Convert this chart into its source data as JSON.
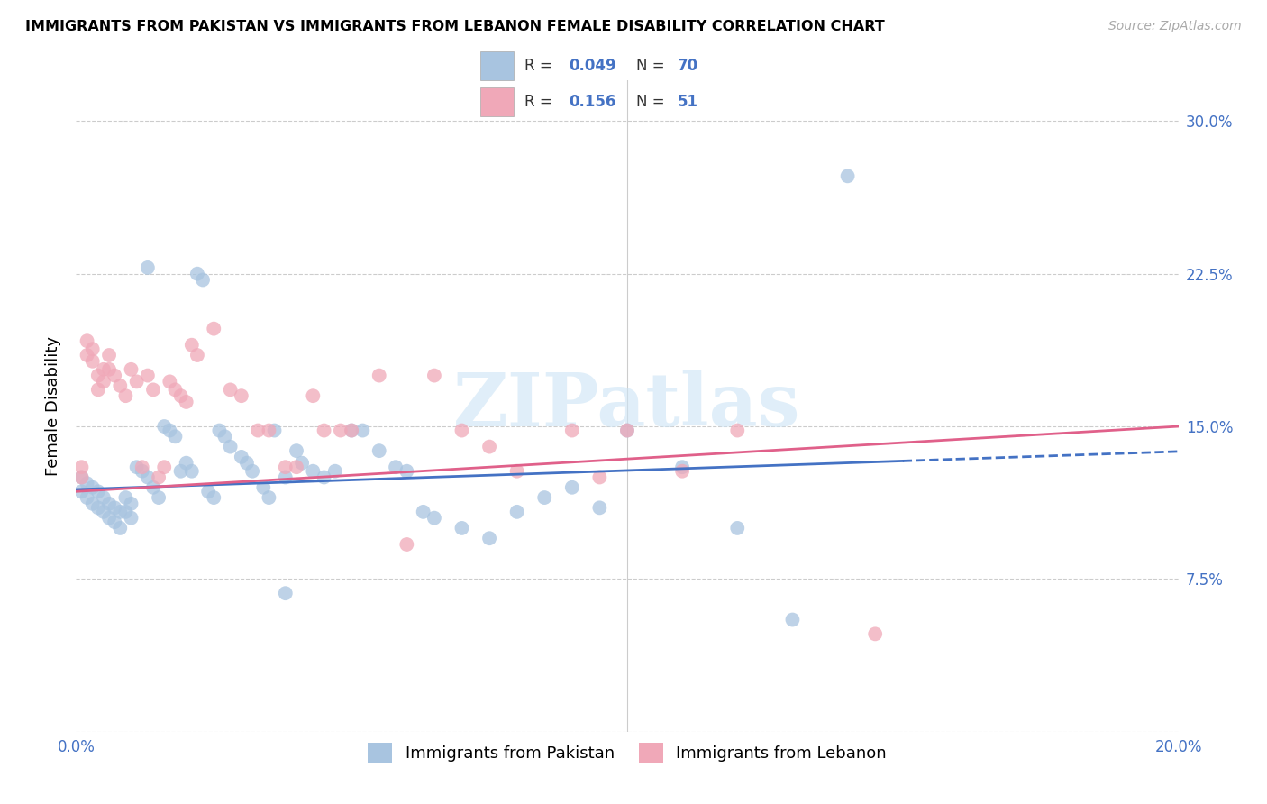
{
  "title": "IMMIGRANTS FROM PAKISTAN VS IMMIGRANTS FROM LEBANON FEMALE DISABILITY CORRELATION CHART",
  "source": "Source: ZipAtlas.com",
  "ylabel": "Female Disability",
  "xlim": [
    0.0,
    0.2
  ],
  "ylim": [
    0.0,
    0.32
  ],
  "yticks": [
    0.0,
    0.075,
    0.15,
    0.225,
    0.3
  ],
  "yticklabels": [
    "",
    "7.5%",
    "15.0%",
    "22.5%",
    "30.0%"
  ],
  "xticks": [
    0.0,
    0.04,
    0.08,
    0.12,
    0.16,
    0.2
  ],
  "xticklabels": [
    "0.0%",
    "",
    "",
    "",
    "",
    "20.0%"
  ],
  "R_pakistan": 0.049,
  "N_pakistan": 70,
  "R_lebanon": 0.156,
  "N_lebanon": 51,
  "color_pakistan": "#a8c4e0",
  "color_lebanon": "#f0a8b8",
  "line_color_pakistan": "#4472c4",
  "line_color_lebanon": "#e0608a",
  "watermark": "ZIPatlas",
  "pak_x": [
    0.001,
    0.001,
    0.002,
    0.002,
    0.003,
    0.003,
    0.004,
    0.004,
    0.005,
    0.005,
    0.006,
    0.006,
    0.007,
    0.007,
    0.008,
    0.008,
    0.009,
    0.009,
    0.01,
    0.01,
    0.011,
    0.012,
    0.013,
    0.013,
    0.014,
    0.015,
    0.016,
    0.017,
    0.018,
    0.019,
    0.02,
    0.021,
    0.022,
    0.023,
    0.024,
    0.025,
    0.026,
    0.027,
    0.028,
    0.03,
    0.031,
    0.032,
    0.034,
    0.035,
    0.036,
    0.038,
    0.04,
    0.041,
    0.043,
    0.045,
    0.047,
    0.05,
    0.052,
    0.055,
    0.058,
    0.06,
    0.063,
    0.065,
    0.07,
    0.075,
    0.08,
    0.085,
    0.09,
    0.095,
    0.1,
    0.11,
    0.12,
    0.13,
    0.14,
    0.038
  ],
  "pak_y": [
    0.125,
    0.118,
    0.122,
    0.115,
    0.12,
    0.112,
    0.118,
    0.11,
    0.115,
    0.108,
    0.112,
    0.105,
    0.11,
    0.103,
    0.108,
    0.1,
    0.115,
    0.108,
    0.112,
    0.105,
    0.13,
    0.128,
    0.125,
    0.228,
    0.12,
    0.115,
    0.15,
    0.148,
    0.145,
    0.128,
    0.132,
    0.128,
    0.225,
    0.222,
    0.118,
    0.115,
    0.148,
    0.145,
    0.14,
    0.135,
    0.132,
    0.128,
    0.12,
    0.115,
    0.148,
    0.125,
    0.138,
    0.132,
    0.128,
    0.125,
    0.128,
    0.148,
    0.148,
    0.138,
    0.13,
    0.128,
    0.108,
    0.105,
    0.1,
    0.095,
    0.108,
    0.115,
    0.12,
    0.11,
    0.148,
    0.13,
    0.1,
    0.055,
    0.273,
    0.068
  ],
  "leb_x": [
    0.001,
    0.001,
    0.002,
    0.002,
    0.003,
    0.003,
    0.004,
    0.004,
    0.005,
    0.005,
    0.006,
    0.006,
    0.007,
    0.008,
    0.009,
    0.01,
    0.011,
    0.012,
    0.013,
    0.014,
    0.015,
    0.016,
    0.017,
    0.018,
    0.019,
    0.02,
    0.021,
    0.022,
    0.025,
    0.028,
    0.03,
    0.033,
    0.035,
    0.038,
    0.04,
    0.043,
    0.045,
    0.048,
    0.05,
    0.055,
    0.06,
    0.065,
    0.07,
    0.075,
    0.08,
    0.09,
    0.095,
    0.1,
    0.11,
    0.12,
    0.145
  ],
  "leb_y": [
    0.13,
    0.125,
    0.192,
    0.185,
    0.188,
    0.182,
    0.175,
    0.168,
    0.178,
    0.172,
    0.185,
    0.178,
    0.175,
    0.17,
    0.165,
    0.178,
    0.172,
    0.13,
    0.175,
    0.168,
    0.125,
    0.13,
    0.172,
    0.168,
    0.165,
    0.162,
    0.19,
    0.185,
    0.198,
    0.168,
    0.165,
    0.148,
    0.148,
    0.13,
    0.13,
    0.165,
    0.148,
    0.148,
    0.148,
    0.175,
    0.092,
    0.175,
    0.148,
    0.14,
    0.128,
    0.148,
    0.125,
    0.148,
    0.128,
    0.148,
    0.048
  ],
  "pak_line_x0": 0.0,
  "pak_line_y0": 0.119,
  "pak_line_x1": 0.15,
  "pak_line_y1": 0.133,
  "pak_line_dashed_x0": 0.15,
  "pak_line_dashed_x1": 0.2,
  "leb_line_x0": 0.0,
  "leb_line_y0": 0.118,
  "leb_line_x1": 0.2,
  "leb_line_y1": 0.15
}
